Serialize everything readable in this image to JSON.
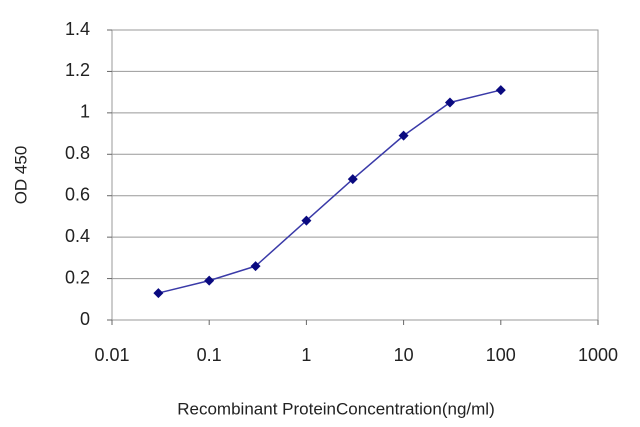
{
  "chart_data": {
    "type": "line",
    "x_label": "Recombinant ProteinConcentration(ng/ml)",
    "y_label": "OD 450",
    "x": [
      0.03,
      0.1,
      0.3,
      1,
      3,
      10,
      30,
      100
    ],
    "values": [
      0.13,
      0.19,
      0.26,
      0.48,
      0.68,
      0.89,
      1.05,
      1.11
    ],
    "color": "#3a3aa8",
    "marker_color": "#0a0a80",
    "x_log": true,
    "xlim": [
      0.01,
      1000
    ],
    "xticks": [
      0.01,
      0.1,
      1,
      10,
      100,
      1000
    ],
    "ylim": [
      0,
      1.4
    ],
    "yticks": [
      0,
      0.2,
      0.4,
      0.6,
      0.8,
      1,
      1.2,
      1.4
    ],
    "grid": true
  }
}
